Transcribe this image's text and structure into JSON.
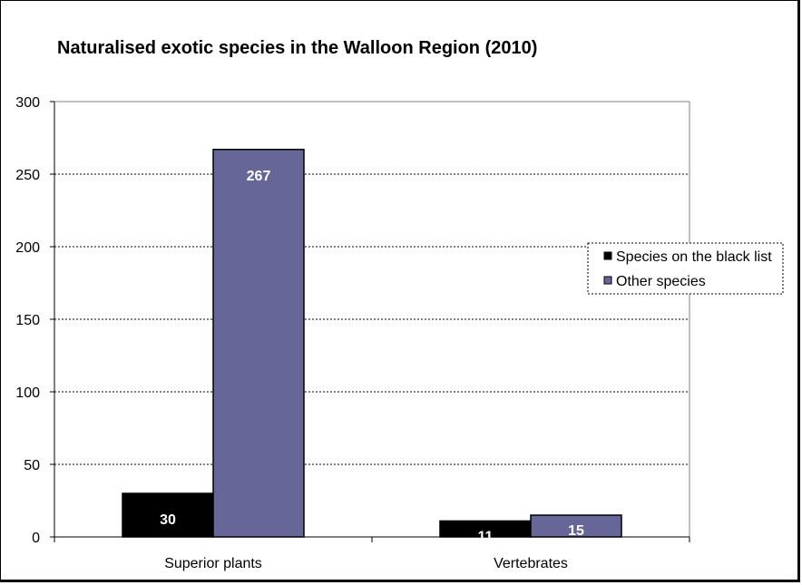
{
  "chart_data": {
    "type": "bar",
    "title": "Naturalised exotic species in the Walloon Region (2010)",
    "categories": [
      "Superior plants",
      "Vertebrates"
    ],
    "series": [
      {
        "name": "Species on the black list",
        "values": [
          30,
          11
        ],
        "color": "#000000"
      },
      {
        "name": "Other species",
        "values": [
          267,
          15
        ],
        "color": "#666699"
      }
    ],
    "yticks": [
      "0",
      "50",
      "100",
      "150",
      "200",
      "250",
      "300"
    ],
    "ylim": [
      0,
      300
    ],
    "xlabel": "",
    "ylabel": "",
    "grid": true,
    "legend_position": "right"
  }
}
